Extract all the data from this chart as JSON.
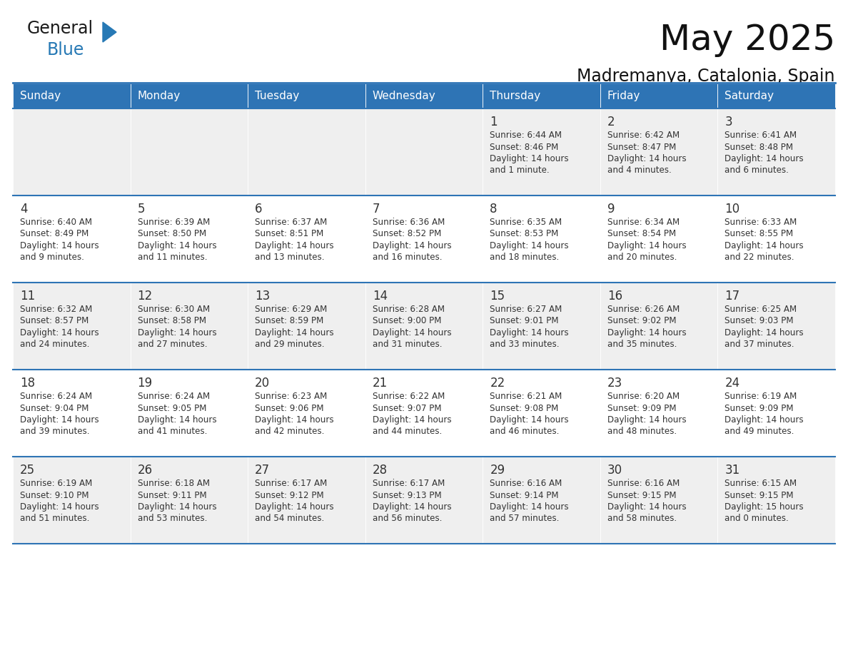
{
  "title": "May 2025",
  "subtitle": "Madremanya, Catalonia, Spain",
  "header_bg": "#2E74B5",
  "header_text_color": "#FFFFFF",
  "day_names": [
    "Sunday",
    "Monday",
    "Tuesday",
    "Wednesday",
    "Thursday",
    "Friday",
    "Saturday"
  ],
  "cell_bg_even": "#EFEFEF",
  "cell_bg_odd": "#FFFFFF",
  "separator_color": "#2E74B5",
  "text_color": "#333333",
  "days": [
    {
      "day": 1,
      "col": 4,
      "row": 0,
      "sunrise": "6:44 AM",
      "sunset": "8:46 PM",
      "daylight_hours": "14",
      "daylight_mins": "1 minute."
    },
    {
      "day": 2,
      "col": 5,
      "row": 0,
      "sunrise": "6:42 AM",
      "sunset": "8:47 PM",
      "daylight_hours": "14",
      "daylight_mins": "4 minutes."
    },
    {
      "day": 3,
      "col": 6,
      "row": 0,
      "sunrise": "6:41 AM",
      "sunset": "8:48 PM",
      "daylight_hours": "14",
      "daylight_mins": "6 minutes."
    },
    {
      "day": 4,
      "col": 0,
      "row": 1,
      "sunrise": "6:40 AM",
      "sunset": "8:49 PM",
      "daylight_hours": "14",
      "daylight_mins": "9 minutes."
    },
    {
      "day": 5,
      "col": 1,
      "row": 1,
      "sunrise": "6:39 AM",
      "sunset": "8:50 PM",
      "daylight_hours": "14",
      "daylight_mins": "11 minutes."
    },
    {
      "day": 6,
      "col": 2,
      "row": 1,
      "sunrise": "6:37 AM",
      "sunset": "8:51 PM",
      "daylight_hours": "14",
      "daylight_mins": "13 minutes."
    },
    {
      "day": 7,
      "col": 3,
      "row": 1,
      "sunrise": "6:36 AM",
      "sunset": "8:52 PM",
      "daylight_hours": "14",
      "daylight_mins": "16 minutes."
    },
    {
      "day": 8,
      "col": 4,
      "row": 1,
      "sunrise": "6:35 AM",
      "sunset": "8:53 PM",
      "daylight_hours": "14",
      "daylight_mins": "18 minutes."
    },
    {
      "day": 9,
      "col": 5,
      "row": 1,
      "sunrise": "6:34 AM",
      "sunset": "8:54 PM",
      "daylight_hours": "14",
      "daylight_mins": "20 minutes."
    },
    {
      "day": 10,
      "col": 6,
      "row": 1,
      "sunrise": "6:33 AM",
      "sunset": "8:55 PM",
      "daylight_hours": "14",
      "daylight_mins": "22 minutes."
    },
    {
      "day": 11,
      "col": 0,
      "row": 2,
      "sunrise": "6:32 AM",
      "sunset": "8:57 PM",
      "daylight_hours": "14",
      "daylight_mins": "24 minutes."
    },
    {
      "day": 12,
      "col": 1,
      "row": 2,
      "sunrise": "6:30 AM",
      "sunset": "8:58 PM",
      "daylight_hours": "14",
      "daylight_mins": "27 minutes."
    },
    {
      "day": 13,
      "col": 2,
      "row": 2,
      "sunrise": "6:29 AM",
      "sunset": "8:59 PM",
      "daylight_hours": "14",
      "daylight_mins": "29 minutes."
    },
    {
      "day": 14,
      "col": 3,
      "row": 2,
      "sunrise": "6:28 AM",
      "sunset": "9:00 PM",
      "daylight_hours": "14",
      "daylight_mins": "31 minutes."
    },
    {
      "day": 15,
      "col": 4,
      "row": 2,
      "sunrise": "6:27 AM",
      "sunset": "9:01 PM",
      "daylight_hours": "14",
      "daylight_mins": "33 minutes."
    },
    {
      "day": 16,
      "col": 5,
      "row": 2,
      "sunrise": "6:26 AM",
      "sunset": "9:02 PM",
      "daylight_hours": "14",
      "daylight_mins": "35 minutes."
    },
    {
      "day": 17,
      "col": 6,
      "row": 2,
      "sunrise": "6:25 AM",
      "sunset": "9:03 PM",
      "daylight_hours": "14",
      "daylight_mins": "37 minutes."
    },
    {
      "day": 18,
      "col": 0,
      "row": 3,
      "sunrise": "6:24 AM",
      "sunset": "9:04 PM",
      "daylight_hours": "14",
      "daylight_mins": "39 minutes."
    },
    {
      "day": 19,
      "col": 1,
      "row": 3,
      "sunrise": "6:24 AM",
      "sunset": "9:05 PM",
      "daylight_hours": "14",
      "daylight_mins": "41 minutes."
    },
    {
      "day": 20,
      "col": 2,
      "row": 3,
      "sunrise": "6:23 AM",
      "sunset": "9:06 PM",
      "daylight_hours": "14",
      "daylight_mins": "42 minutes."
    },
    {
      "day": 21,
      "col": 3,
      "row": 3,
      "sunrise": "6:22 AM",
      "sunset": "9:07 PM",
      "daylight_hours": "14",
      "daylight_mins": "44 minutes."
    },
    {
      "day": 22,
      "col": 4,
      "row": 3,
      "sunrise": "6:21 AM",
      "sunset": "9:08 PM",
      "daylight_hours": "14",
      "daylight_mins": "46 minutes."
    },
    {
      "day": 23,
      "col": 5,
      "row": 3,
      "sunrise": "6:20 AM",
      "sunset": "9:09 PM",
      "daylight_hours": "14",
      "daylight_mins": "48 minutes."
    },
    {
      "day": 24,
      "col": 6,
      "row": 3,
      "sunrise": "6:19 AM",
      "sunset": "9:09 PM",
      "daylight_hours": "14",
      "daylight_mins": "49 minutes."
    },
    {
      "day": 25,
      "col": 0,
      "row": 4,
      "sunrise": "6:19 AM",
      "sunset": "9:10 PM",
      "daylight_hours": "14",
      "daylight_mins": "51 minutes."
    },
    {
      "day": 26,
      "col": 1,
      "row": 4,
      "sunrise": "6:18 AM",
      "sunset": "9:11 PM",
      "daylight_hours": "14",
      "daylight_mins": "53 minutes."
    },
    {
      "day": 27,
      "col": 2,
      "row": 4,
      "sunrise": "6:17 AM",
      "sunset": "9:12 PM",
      "daylight_hours": "14",
      "daylight_mins": "54 minutes."
    },
    {
      "day": 28,
      "col": 3,
      "row": 4,
      "sunrise": "6:17 AM",
      "sunset": "9:13 PM",
      "daylight_hours": "14",
      "daylight_mins": "56 minutes."
    },
    {
      "day": 29,
      "col": 4,
      "row": 4,
      "sunrise": "6:16 AM",
      "sunset": "9:14 PM",
      "daylight_hours": "14",
      "daylight_mins": "57 minutes."
    },
    {
      "day": 30,
      "col": 5,
      "row": 4,
      "sunrise": "6:16 AM",
      "sunset": "9:15 PM",
      "daylight_hours": "14",
      "daylight_mins": "58 minutes."
    },
    {
      "day": 31,
      "col": 6,
      "row": 4,
      "sunrise": "6:15 AM",
      "sunset": "9:15 PM",
      "daylight_hours": "15",
      "daylight_mins": "0 minutes."
    }
  ],
  "logo_general_color": "#1a1a1a",
  "logo_blue_color": "#2779B5",
  "num_rows": 5
}
